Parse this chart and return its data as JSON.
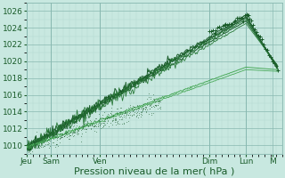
{
  "bg_color": "#c8e8e0",
  "grid_major_color": "#88b8b0",
  "grid_minor_color": "#b0d8d0",
  "line_color_dark": "#1a5c2a",
  "line_color_mid": "#2a7a3a",
  "line_color_light": "#4aaa5a",
  "ylim": [
    1009.0,
    1027.0
  ],
  "yticks": [
    1010,
    1012,
    1014,
    1016,
    1018,
    1020,
    1022,
    1024,
    1026
  ],
  "xlabel": "Pression niveau de la mer( hPa )",
  "xlabel_fontsize": 8,
  "tick_fontsize": 6.5,
  "xlim": [
    0,
    10.5
  ]
}
